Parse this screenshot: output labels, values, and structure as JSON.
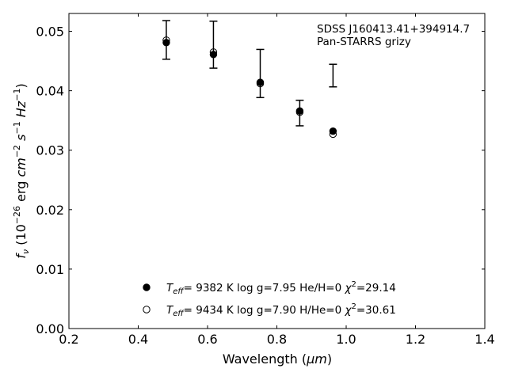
{
  "chart_data": {
    "type": "scatter",
    "xlabel_main": "Wavelength (",
    "xlabel_unit": "μm",
    "xlabel_close": ")",
    "ylabel": "f_ν (10^-26 erg cm^-2 s^-1 Hz^-1)",
    "xlim": [
      0.2,
      1.4
    ],
    "ylim": [
      0.0,
      0.053
    ],
    "xticks": [
      "0.2",
      "0.4",
      "0.6",
      "0.8",
      "1.0",
      "1.2",
      "1.4"
    ],
    "yticks": [
      "0.00",
      "0.01",
      "0.02",
      "0.03",
      "0.04",
      "0.05"
    ],
    "annotation": [
      "SDSS J160413.41+394914.7",
      "Pan-STARRS grizy"
    ],
    "observed": {
      "x": [
        0.481,
        0.617,
        0.752,
        0.866,
        0.962
      ],
      "y": [
        0.04855,
        0.04775,
        0.0429,
        0.03625,
        0.04255
      ],
      "yerr": [
        0.00325,
        0.00395,
        0.00405,
        0.00215,
        0.0019
      ]
    },
    "series": [
      {
        "marker": "filled",
        "x": [
          0.481,
          0.617,
          0.752,
          0.866,
          0.962
        ],
        "y": [
          0.0481,
          0.0461,
          0.0414,
          0.0366,
          0.0332
        ]
      },
      {
        "marker": "open",
        "x": [
          0.481,
          0.617,
          0.752,
          0.866,
          0.962
        ],
        "y": [
          0.0485,
          0.0465,
          0.0412,
          0.0364,
          0.0327
        ]
      }
    ],
    "legend": [
      {
        "marker": "filled",
        "teff_sym": "T",
        "teff_sub": "eff",
        "params": "=  9382 K  log g=7.95  He/H=0 ",
        "chi_sym": "χ",
        "chi_sup": "2",
        "chi_val": "=29.14"
      },
      {
        "marker": "open",
        "teff_sym": "T",
        "teff_sub": "eff",
        "params": "=  9434 K  log g=7.90  H/He=0 ",
        "chi_sym": "χ",
        "chi_sup": "2",
        "chi_val": "=30.61"
      }
    ],
    "legend_placement": "lower-center",
    "grid": false
  }
}
